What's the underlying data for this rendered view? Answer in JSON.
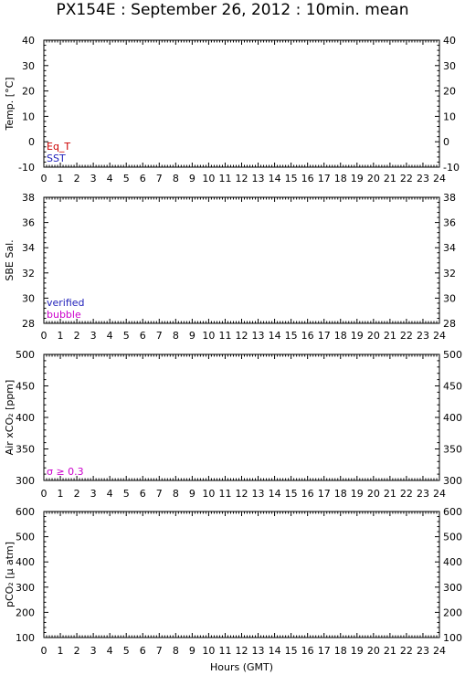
{
  "title": "PX154E : September 26, 2012 : 10min. mean",
  "xlabel": "Hours (GMT)",
  "chart_data": [
    {
      "type": "line",
      "ylabel": "Temp. [°C]",
      "ylim": [
        -10,
        40
      ],
      "yticks": [
        -10,
        0,
        10,
        20,
        30,
        40
      ],
      "xlim": [
        0,
        24
      ],
      "xticks": [
        0,
        1,
        2,
        3,
        4,
        5,
        6,
        7,
        8,
        9,
        10,
        11,
        12,
        13,
        14,
        15,
        16,
        17,
        18,
        19,
        20,
        21,
        22,
        23,
        24
      ],
      "series": [
        {
          "name": "Eq_T",
          "color": "#cc0000",
          "values": []
        },
        {
          "name": "SST",
          "color": "#2222bb",
          "values": []
        }
      ]
    },
    {
      "type": "line",
      "ylabel": "SBE Sal.",
      "ylim": [
        28,
        38
      ],
      "yticks": [
        28,
        30,
        32,
        34,
        36,
        38
      ],
      "xlim": [
        0,
        24
      ],
      "xticks": [
        0,
        1,
        2,
        3,
        4,
        5,
        6,
        7,
        8,
        9,
        10,
        11,
        12,
        13,
        14,
        15,
        16,
        17,
        18,
        19,
        20,
        21,
        22,
        23,
        24
      ],
      "series": [
        {
          "name": "verified",
          "color": "#2222bb",
          "values": []
        },
        {
          "name": "bubble",
          "color": "#cc00cc",
          "values": []
        }
      ]
    },
    {
      "type": "line",
      "ylabel": "Air xCO₂ [ppm]",
      "ylim": [
        300,
        500
      ],
      "yticks": [
        300,
        350,
        400,
        450,
        500
      ],
      "xlim": [
        0,
        24
      ],
      "xticks": [
        0,
        1,
        2,
        3,
        4,
        5,
        6,
        7,
        8,
        9,
        10,
        11,
        12,
        13,
        14,
        15,
        16,
        17,
        18,
        19,
        20,
        21,
        22,
        23,
        24
      ],
      "series": [
        {
          "name": "σ ≥ 0.3",
          "color": "#cc00cc",
          "values": []
        }
      ]
    },
    {
      "type": "line",
      "ylabel": "pCO₂ [μ atm]",
      "ylim": [
        100,
        600
      ],
      "yticks": [
        100,
        200,
        300,
        400,
        500,
        600
      ],
      "xlim": [
        0,
        24
      ],
      "xticks": [
        0,
        1,
        2,
        3,
        4,
        5,
        6,
        7,
        8,
        9,
        10,
        11,
        12,
        13,
        14,
        15,
        16,
        17,
        18,
        19,
        20,
        21,
        22,
        23,
        24
      ],
      "series": []
    }
  ]
}
